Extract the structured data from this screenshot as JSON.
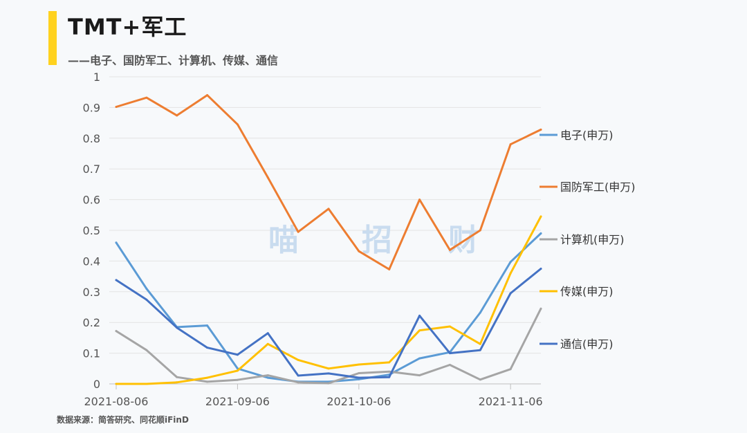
{
  "header": {
    "title": "TMT+军工",
    "subtitle": "——电子、国防军工、计算机、传媒、通信"
  },
  "footer": {
    "source": "数据来源：简答研究、同花顺iFinD"
  },
  "watermark": [
    "喵",
    "招",
    "财"
  ],
  "chart_data": {
    "type": "line",
    "title": "",
    "xlabel": "",
    "ylabel": "",
    "ylim": [
      0,
      1
    ],
    "yticks": [
      "0",
      "0.1",
      "0.2",
      "0.3",
      "0.4",
      "0.5",
      "0.6",
      "0.7",
      "0.8",
      "0.9",
      "1"
    ],
    "x_tick_labels": [
      "2021-08-06",
      "2021-09-06",
      "2021-10-06",
      "2021-11-06"
    ],
    "x_tick_indices": [
      0,
      4,
      8,
      13
    ],
    "grid": true,
    "legend": "right",
    "series": [
      {
        "name": "电子(申万)",
        "color": "#5b9bd5",
        "values": [
          0.46,
          0.31,
          0.185,
          0.19,
          0.05,
          0.02,
          0.007,
          0.007,
          0.015,
          0.03,
          0.083,
          0.103,
          0.232,
          0.397,
          0.49
        ]
      },
      {
        "name": "国防军工(申万)",
        "color": "#ed7d31",
        "values": [
          0.902,
          0.932,
          0.874,
          0.94,
          0.845,
          0.672,
          0.495,
          0.57,
          0.432,
          0.373,
          0.6,
          0.436,
          0.5,
          0.78,
          0.828
        ]
      },
      {
        "name": "计算机(申万)",
        "color": "#a5a5a5",
        "values": [
          0.172,
          0.11,
          0.022,
          0.007,
          0.013,
          0.028,
          0.005,
          0.002,
          0.035,
          0.04,
          0.028,
          0.062,
          0.014,
          0.048,
          0.245
        ]
      },
      {
        "name": "传媒(申万)",
        "color": "#ffc000",
        "values": [
          0.0,
          0.0,
          0.005,
          0.02,
          0.043,
          0.13,
          0.078,
          0.05,
          0.063,
          0.07,
          0.174,
          0.187,
          0.13,
          0.36,
          0.545
        ]
      },
      {
        "name": "通信(申万)",
        "color": "#4472c4",
        "values": [
          0.338,
          0.274,
          0.183,
          0.118,
          0.095,
          0.165,
          0.027,
          0.034,
          0.02,
          0.022,
          0.222,
          0.1,
          0.11,
          0.295,
          0.375
        ]
      }
    ]
  }
}
